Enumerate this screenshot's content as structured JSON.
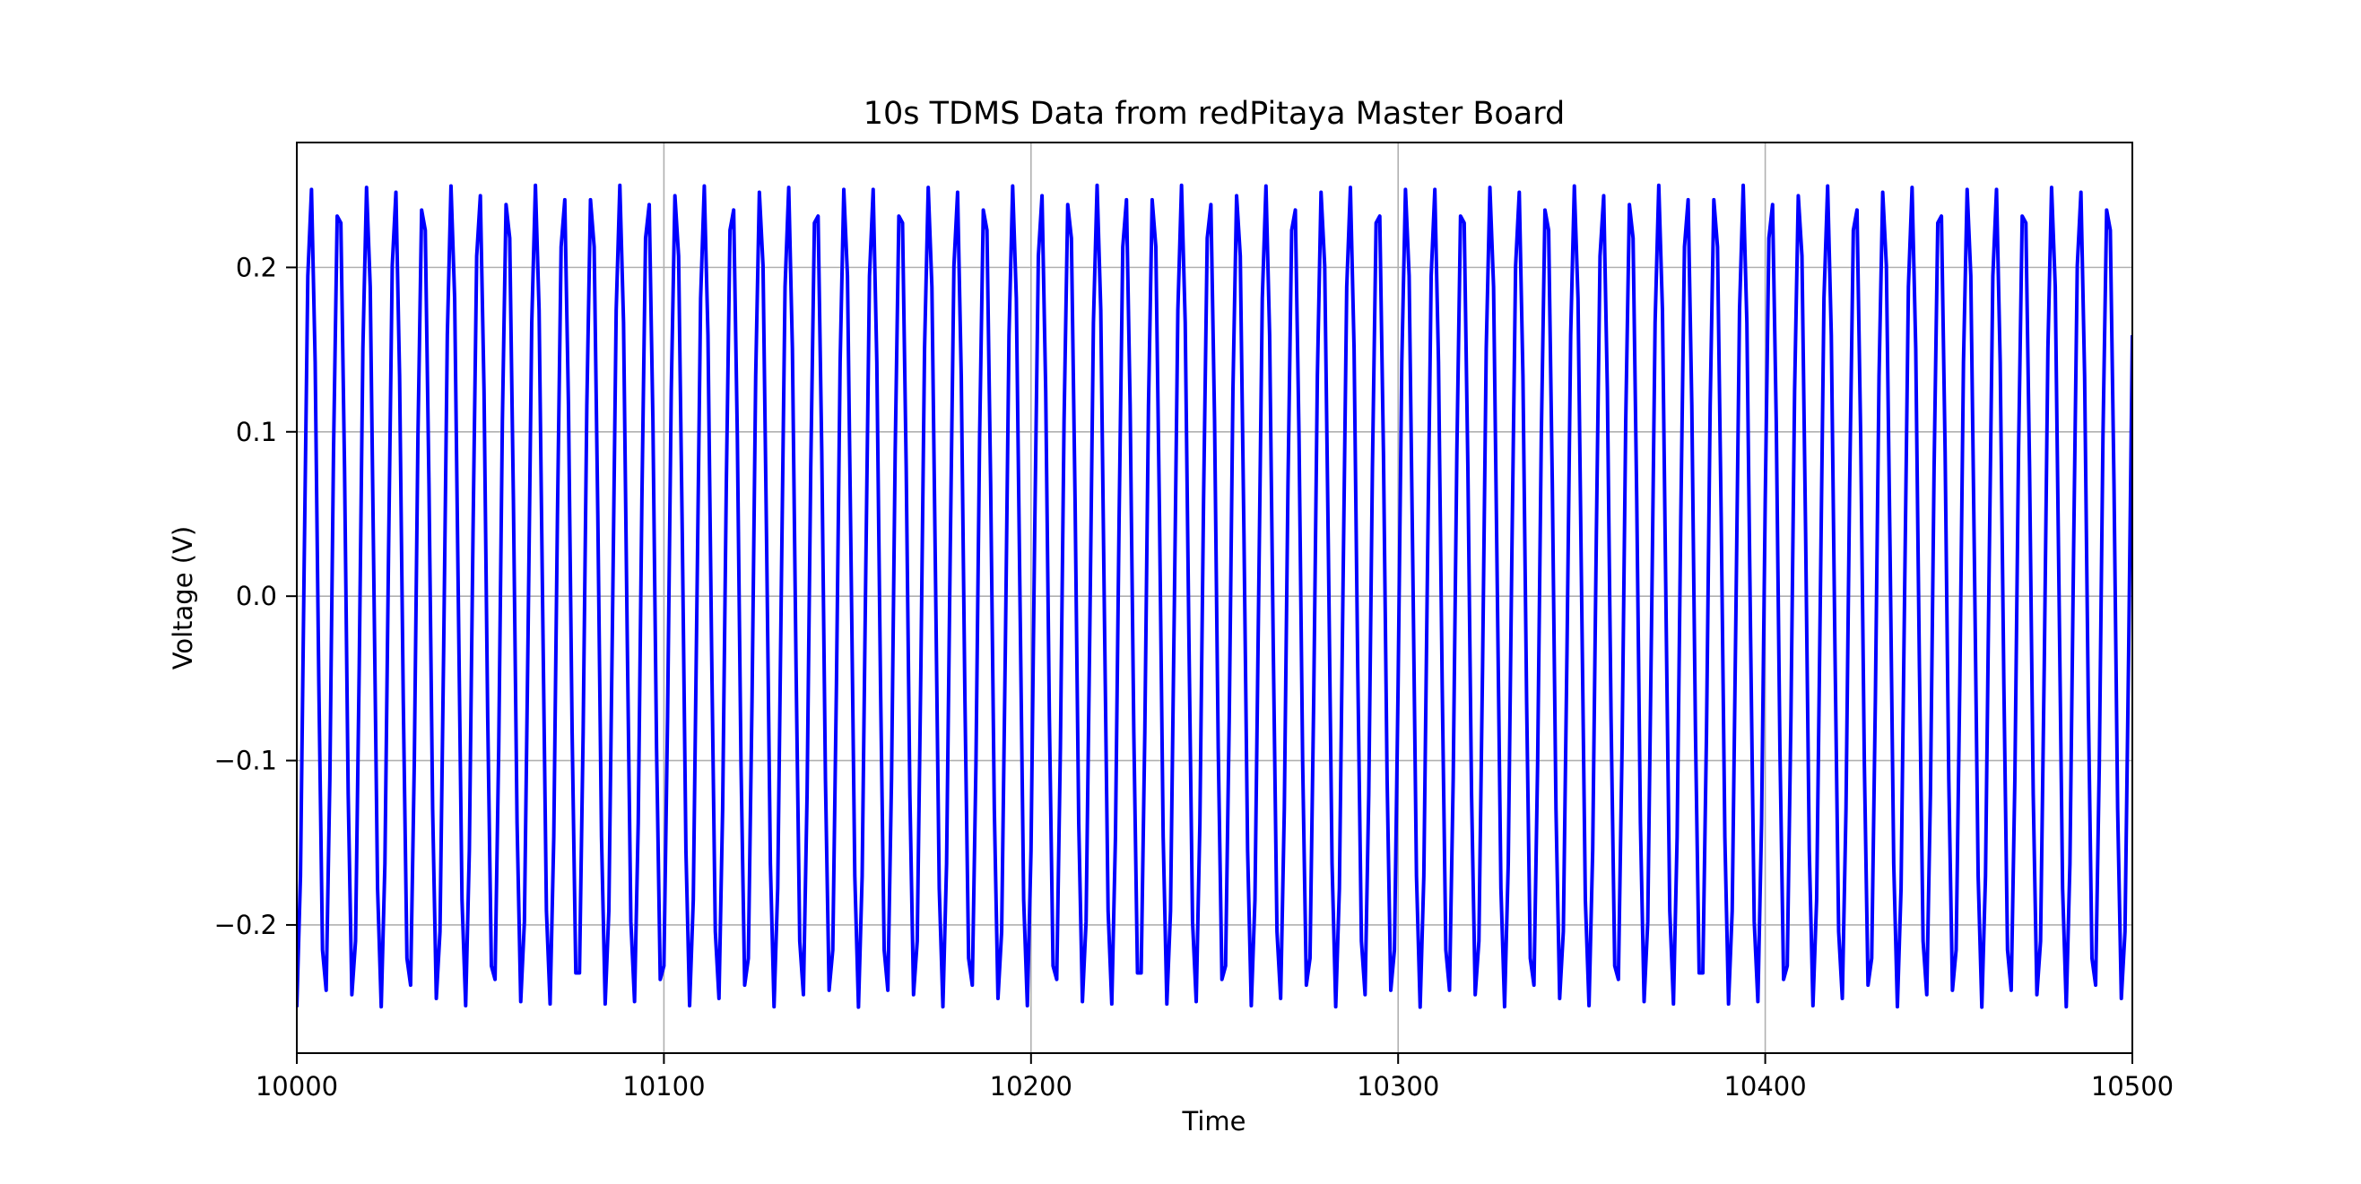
{
  "chart_data": {
    "type": "line",
    "title": "10s TDMS Data from redPitaya Master Board",
    "xlabel": "Time",
    "ylabel": "Voltage (V)",
    "xlim": [
      10000,
      10500
    ],
    "ylim": [
      -0.278,
      0.276
    ],
    "x_ticks": [
      10000,
      10100,
      10200,
      10300,
      10400,
      10500
    ],
    "x_tick_labels": [
      "10000",
      "10100",
      "10200",
      "10300",
      "10400",
      "10500"
    ],
    "y_ticks": [
      -0.2,
      -0.1,
      0.0,
      0.1,
      0.2
    ],
    "y_tick_labels": [
      "−0.2",
      "−0.1",
      "0.0",
      "0.1",
      "0.2"
    ],
    "grid": true,
    "legend": "none",
    "series": [
      {
        "color": "#0000ff",
        "sample_interval": 1,
        "x_start": 10000,
        "x_end": 10500,
        "signal": {
          "form": "sine",
          "amplitude": 0.25,
          "period": 7.65,
          "phase_deg": -90,
          "offset": 0
        }
      }
    ]
  }
}
